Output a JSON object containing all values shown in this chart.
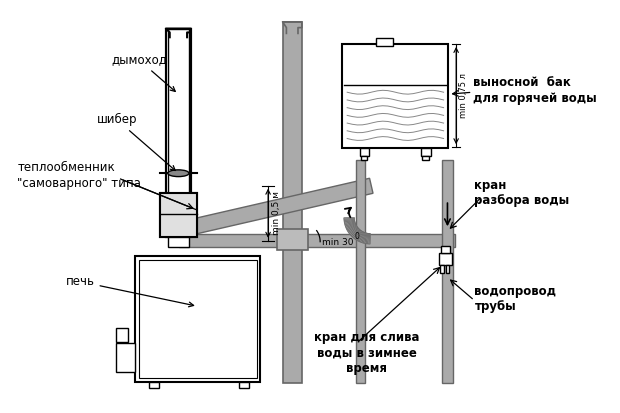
{
  "bg_color": "#ffffff",
  "lc": "#000000",
  "gray": "#aaaaaa",
  "dgray": "#666666",
  "lgray": "#cccccc",
  "labels": {
    "dymokhod": "дымоход",
    "shibyer": "шибер",
    "teploline1": "теплообменник",
    "teploline2": "\"самоварного\" типа",
    "pech": "печь",
    "bak1": "выносной  бак",
    "bak2": "для горячей воды",
    "kran1": "кран",
    "kran2": "разбора воды",
    "vodo1": "водопровод",
    "vodo2": "трубы",
    "sliv1": "кран для слива",
    "sliv2": "воды в зимнее",
    "sliv3": "время",
    "dim1": "min 0,5 м",
    "dim2": "min 0,75 л",
    "dim3": "min 30",
    "deg": "0"
  }
}
